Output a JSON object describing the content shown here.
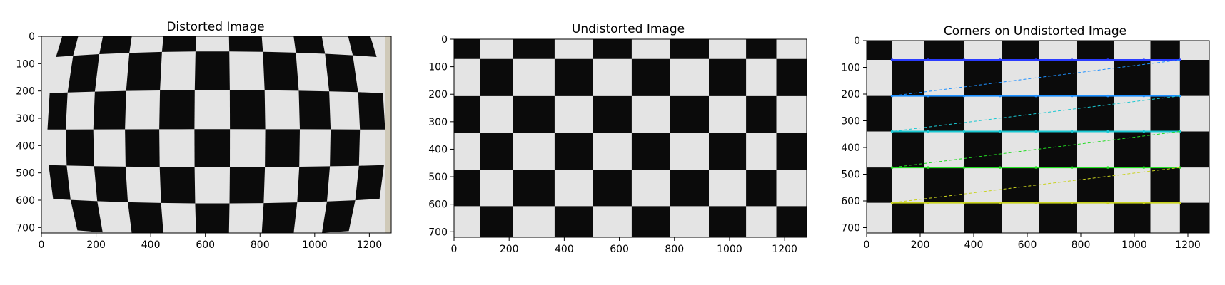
{
  "panels": [
    {
      "id": "distorted",
      "title": "Distorted Image",
      "board": {
        "cols": 10,
        "rows": 6,
        "variant": "distorted"
      },
      "x_ticks": [
        "0",
        "200",
        "400",
        "600",
        "800",
        "1000",
        "1200"
      ],
      "y_ticks": [
        "0",
        "100",
        "200",
        "300",
        "400",
        "500",
        "600",
        "700"
      ],
      "x_tick_values": [
        0,
        200,
        400,
        600,
        800,
        1000,
        1200
      ],
      "y_tick_values": [
        0,
        100,
        200,
        300,
        400,
        500,
        600,
        700
      ],
      "x_range": [
        0,
        1280
      ],
      "y_range": [
        0,
        720
      ]
    },
    {
      "id": "undistorted",
      "title": "Undistorted Image",
      "board": {
        "cols": 10,
        "rows": 6,
        "variant": "undistorted"
      },
      "x_ticks": [
        "0",
        "200",
        "400",
        "600",
        "800",
        "1000",
        "1200"
      ],
      "y_ticks": [
        "0",
        "100",
        "200",
        "300",
        "400",
        "500",
        "600",
        "700"
      ],
      "x_tick_values": [
        0,
        200,
        400,
        600,
        800,
        1000,
        1200
      ],
      "y_tick_values": [
        0,
        100,
        200,
        300,
        400,
        500,
        600,
        700
      ],
      "x_range": [
        0,
        1280
      ],
      "y_range": [
        0,
        720
      ]
    },
    {
      "id": "corners",
      "title": "Corners on Undistorted Image",
      "board": {
        "cols": 10,
        "rows": 6,
        "variant": "corners"
      },
      "x_ticks": [
        "0",
        "200",
        "400",
        "600",
        "800",
        "1000",
        "1200"
      ],
      "y_ticks": [
        "0",
        "100",
        "200",
        "300",
        "400",
        "500",
        "600",
        "700"
      ],
      "x_tick_values": [
        0,
        200,
        400,
        600,
        800,
        1000,
        1200
      ],
      "y_tick_values": [
        0,
        100,
        200,
        300,
        400,
        500,
        600,
        700
      ],
      "x_range": [
        0,
        1280
      ],
      "y_range": [
        0,
        720
      ],
      "corner_rows": [
        {
          "y": 72,
          "x_start": 95,
          "x_end": 1170,
          "color": "#2a3cff"
        },
        {
          "y": 207,
          "x_start": 95,
          "x_end": 1170,
          "color": "#1e90ff"
        },
        {
          "y": 340,
          "x_start": 95,
          "x_end": 1170,
          "color": "#19c8d2"
        },
        {
          "y": 475,
          "x_start": 95,
          "x_end": 1170,
          "color": "#22dd22"
        },
        {
          "y": 607,
          "x_start": 95,
          "x_end": 1170,
          "color": "#c8d21e"
        }
      ]
    }
  ]
}
